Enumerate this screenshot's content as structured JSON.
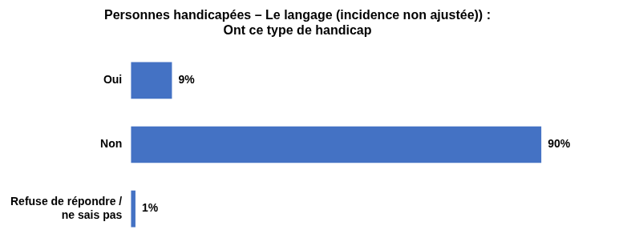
{
  "chart_data": {
    "type": "bar",
    "orientation": "horizontal",
    "title": "Personnes handicapées – Le langage (incidence non ajustée)) :\nOnt ce type de handicap",
    "categories": [
      "Oui",
      "Non",
      "Refuse de répondre /\nne sais pas"
    ],
    "values": [
      9,
      90,
      1
    ],
    "value_labels": [
      "9%",
      "90%",
      "1%"
    ],
    "data_labels": true,
    "color": "#4472C4",
    "xlim": [
      0,
      100
    ],
    "tick_labels": "y",
    "grid": false
  }
}
